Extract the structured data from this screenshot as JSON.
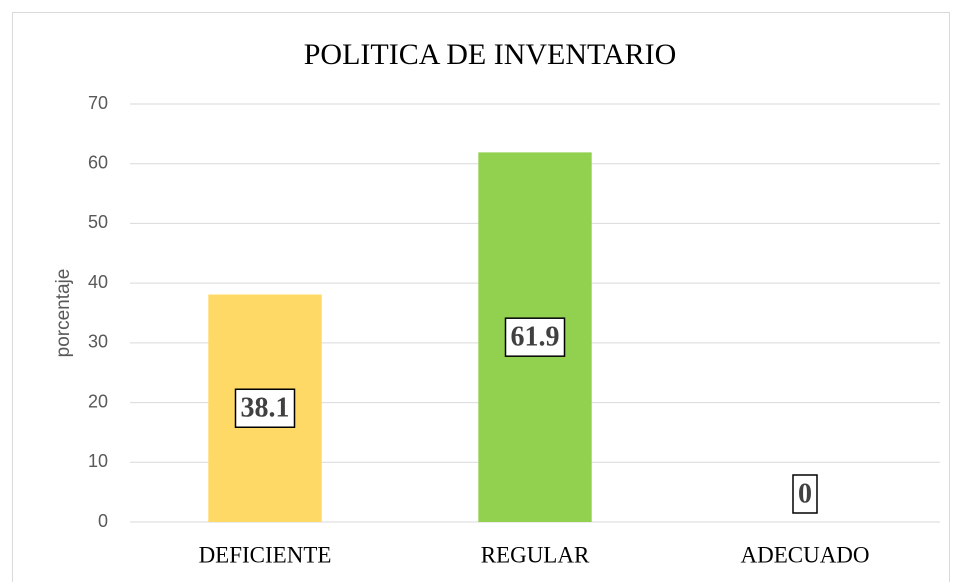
{
  "chart_data": {
    "type": "bar",
    "title": "POLITICA DE INVENTARIO",
    "y_label": "porcentaje",
    "categories": [
      "DEFICIENTE",
      "REGULAR",
      "ADECUADO"
    ],
    "values": [
      38.1,
      61.9,
      0
    ],
    "colors": [
      "#FFD966",
      "#92D050",
      "#5B9BD5"
    ],
    "ylim": [
      0,
      70
    ],
    "yticks": [
      0,
      10,
      20,
      30,
      40,
      50,
      60,
      70
    ],
    "grid": true
  }
}
